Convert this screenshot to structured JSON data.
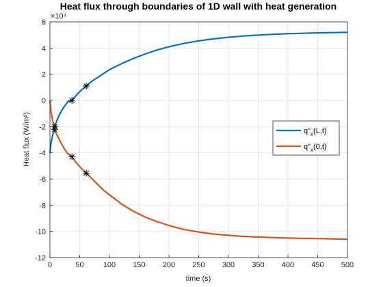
{
  "chart_data": {
    "type": "line",
    "title": "Heat flux through boundaries of 1D wall with heat generation",
    "xlabel": "time (s)",
    "ylabel": "Heat flux (W/m²)",
    "y_exponent_label": "×10⁴",
    "xlim": [
      0,
      500
    ],
    "ylim": [
      -12,
      6
    ],
    "y_scale_note": "values in units of 10^4",
    "xticks": [
      0,
      50,
      100,
      150,
      200,
      250,
      300,
      350,
      400,
      450,
      500
    ],
    "yticks": [
      -12,
      -10,
      -8,
      -6,
      -4,
      -2,
      0,
      2,
      4,
      6
    ],
    "grid": true,
    "legend_position": "right",
    "series": [
      {
        "name": "q\"x(L,t)",
        "color": "#0072BD",
        "x": [
          0,
          2,
          5,
          8,
          12,
          16,
          20,
          25,
          30,
          37,
          45,
          53,
          61,
          70,
          80,
          90,
          100,
          120,
          140,
          160,
          180,
          200,
          225,
          250,
          275,
          300,
          325,
          350,
          375,
          400,
          425,
          450,
          475,
          500
        ],
        "y": [
          -4.0,
          -3.2,
          -2.6,
          -2.0,
          -1.5,
          -1.1,
          -0.75,
          -0.4,
          -0.1,
          0.0,
          0.45,
          0.8,
          1.1,
          1.45,
          1.75,
          2.05,
          2.35,
          2.8,
          3.2,
          3.55,
          3.85,
          4.1,
          4.35,
          4.55,
          4.7,
          4.82,
          4.92,
          4.99,
          5.05,
          5.1,
          5.13,
          5.16,
          5.18,
          5.2
        ],
        "markers": [
          {
            "x": 8,
            "y": -2.0
          },
          {
            "x": 37,
            "y": 0.0
          },
          {
            "x": 61,
            "y": 1.1
          }
        ]
      },
      {
        "name": "q\"x(0,t)",
        "color": "#D95319",
        "x": [
          0,
          2,
          4,
          6,
          8,
          12,
          16,
          20,
          25,
          30,
          37,
          45,
          53,
          61,
          70,
          80,
          90,
          100,
          120,
          140,
          160,
          180,
          200,
          225,
          250,
          275,
          300,
          325,
          350,
          375,
          400,
          425,
          450,
          475,
          500
        ],
        "y": [
          0.0,
          -0.9,
          -1.4,
          -1.8,
          -2.2,
          -2.65,
          -3.0,
          -3.35,
          -3.75,
          -4.05,
          -4.3,
          -4.8,
          -5.2,
          -5.55,
          -5.95,
          -6.4,
          -6.85,
          -7.2,
          -7.9,
          -8.45,
          -8.9,
          -9.25,
          -9.55,
          -9.85,
          -10.05,
          -10.2,
          -10.3,
          -10.38,
          -10.43,
          -10.47,
          -10.5,
          -10.53,
          -10.55,
          -10.57,
          -10.6
        ],
        "markers": [
          {
            "x": 8,
            "y": -2.2
          },
          {
            "x": 37,
            "y": -4.3
          },
          {
            "x": 61,
            "y": -5.55
          }
        ]
      }
    ]
  },
  "legend": {
    "items": [
      {
        "main": "q\"",
        "sub": "x",
        "tail": "(L,t)"
      },
      {
        "main": "q\"",
        "sub": "x",
        "tail": "(0,t)"
      }
    ]
  }
}
